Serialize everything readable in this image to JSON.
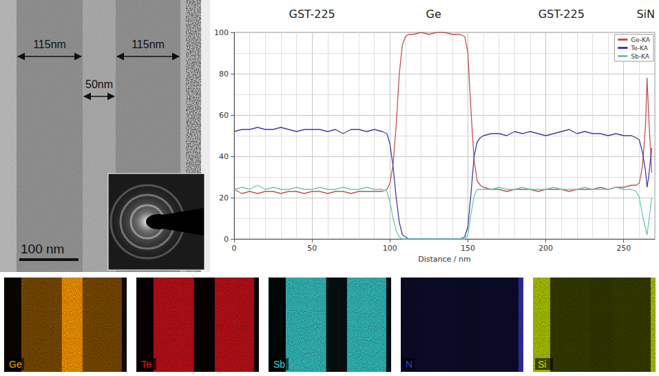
{
  "chart_data": {
    "type": "line",
    "annotations": [
      "GST-225",
      "Ge",
      "GST-225",
      "SiN"
    ],
    "xlabel": "Distance / nm",
    "x": [
      0,
      5,
      10,
      15,
      20,
      25,
      30,
      35,
      40,
      45,
      50,
      55,
      60,
      65,
      70,
      75,
      80,
      85,
      90,
      95,
      98,
      100,
      102,
      104,
      106,
      108,
      110,
      112,
      115,
      120,
      125,
      130,
      135,
      140,
      145,
      148,
      150,
      152,
      154,
      156,
      158,
      160,
      165,
      170,
      175,
      180,
      185,
      190,
      195,
      200,
      205,
      210,
      215,
      220,
      225,
      230,
      235,
      240,
      245,
      250,
      255,
      258,
      260,
      262,
      264,
      265,
      266,
      268
    ],
    "series": [
      {
        "name": "Ge-KA",
        "color": "#c0504d",
        "values": [
          24,
          22,
          23,
          22,
          23,
          23,
          22,
          23,
          23,
          22,
          23,
          23,
          22,
          23,
          23,
          22,
          23,
          23,
          23,
          23,
          24,
          27,
          36,
          55,
          80,
          94,
          98,
          99,
          99,
          100,
          99,
          100,
          100,
          99,
          99,
          98,
          90,
          62,
          38,
          28,
          26,
          25,
          24,
          24,
          23,
          24,
          24,
          24,
          23,
          24,
          24,
          24,
          23,
          24,
          24,
          24,
          25,
          24,
          25,
          25,
          26,
          26,
          27,
          35,
          55,
          78,
          60,
          32
        ]
      },
      {
        "name": "Te-KA",
        "color": "#3c3ca8",
        "values": [
          52,
          53,
          53,
          54,
          53,
          53,
          54,
          53,
          52,
          53,
          53,
          53,
          52,
          53,
          51,
          53,
          53,
          52,
          53,
          52,
          51,
          46,
          35,
          20,
          8,
          2,
          1,
          0,
          0,
          0,
          0,
          0,
          0,
          0,
          0,
          1,
          6,
          22,
          40,
          47,
          49,
          50,
          51,
          51,
          50,
          52,
          51,
          52,
          51,
          50,
          51,
          52,
          53,
          51,
          52,
          51,
          51,
          50,
          51,
          50,
          50,
          49,
          48,
          42,
          33,
          25,
          30,
          44
        ]
      },
      {
        "name": "Sb-KA",
        "color": "#6cc4b8",
        "values": [
          24,
          25,
          24,
          26,
          24,
          25,
          24,
          24,
          25,
          24,
          24,
          25,
          24,
          24,
          25,
          24,
          24,
          25,
          24,
          24,
          23,
          18,
          10,
          4,
          1,
          0,
          0,
          0,
          0,
          0,
          0,
          0,
          0,
          0,
          0,
          0,
          2,
          12,
          21,
          24,
          24,
          24,
          24,
          25,
          24,
          24,
          25,
          24,
          24,
          24,
          25,
          24,
          24,
          24,
          25,
          24,
          24,
          24,
          25,
          24,
          24,
          23,
          20,
          12,
          5,
          2,
          8,
          20
        ]
      }
    ],
    "xlim": [
      0,
      270
    ],
    "xticks": [
      0,
      50,
      100,
      150,
      200,
      250
    ],
    "ylim": [
      0,
      100
    ],
    "yticks": [
      0,
      20,
      40,
      60,
      80,
      100
    ],
    "grid": true,
    "legend": "top-right",
    "marker": "none"
  },
  "tem_image": {
    "dimension_labels": [
      "115nm",
      "50nm",
      "115nm"
    ],
    "scale_bar": "100 nm"
  },
  "eds_maps": [
    {
      "label": "Ge",
      "color": "#ff9c00"
    },
    {
      "label": "Te",
      "color": "#e8141e"
    },
    {
      "label": "Sb",
      "color": "#3cd8d8"
    },
    {
      "label": "N",
      "color": "#3a3ad0"
    },
    {
      "label": "Si",
      "color": "#c8e400"
    }
  ]
}
